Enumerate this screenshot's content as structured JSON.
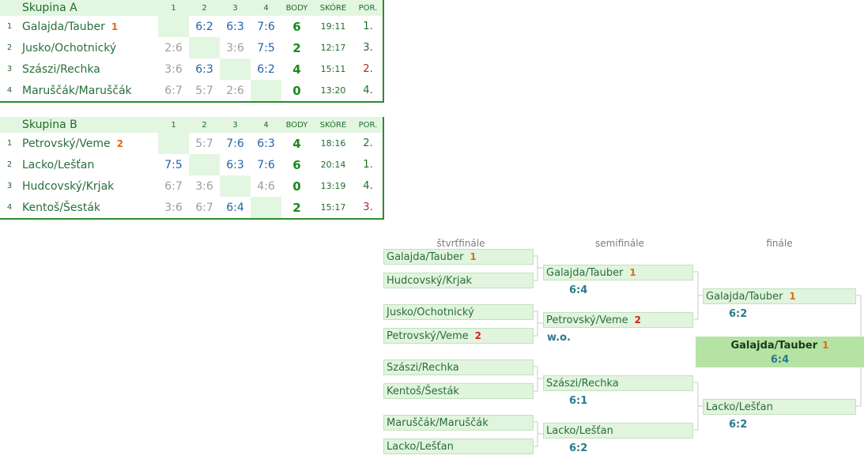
{
  "group_a": {
    "title": "Skupina A",
    "headers": [
      "1",
      "2",
      "3",
      "4",
      "BODY",
      "SKÓRE",
      "POR."
    ],
    "rows": [
      {
        "idx": "1",
        "team": "Galajda/Tauber",
        "seed": "1",
        "c1": "",
        "c2": "6:2",
        "c3": "6:3",
        "c4": "7:6",
        "pts": "6",
        "score": "19:11",
        "rank": "1."
      },
      {
        "idx": "2",
        "team": "Jusko/Ochotnický",
        "seed": "",
        "c1": "2:6",
        "c2": "",
        "c3": "3:6",
        "c4": "7:5",
        "pts": "2",
        "score": "12:17",
        "rank": "3."
      },
      {
        "idx": "3",
        "team": "Szászi/Rechka",
        "seed": "",
        "c1": "3:6",
        "c2": "6:3",
        "c3": "",
        "c4": "6:2",
        "pts": "4",
        "score": "15:11",
        "rank": "2."
      },
      {
        "idx": "4",
        "team": "Maruščák/Maruščák",
        "seed": "",
        "c1": "6:7",
        "c2": "5:7",
        "c3": "2:6",
        "c4": "",
        "pts": "0",
        "score": "13:20",
        "rank": "4."
      }
    ]
  },
  "group_b": {
    "title": "Skupina B",
    "headers": [
      "1",
      "2",
      "3",
      "4",
      "BODY",
      "SKÓRE",
      "POR."
    ],
    "rows": [
      {
        "idx": "1",
        "team": "Petrovský/Veme",
        "seed": "2",
        "c1": "",
        "c2": "5:7",
        "c3": "7:6",
        "c4": "6:3",
        "pts": "4",
        "score": "18:16",
        "rank": "2."
      },
      {
        "idx": "2",
        "team": "Lacko/Lešťan",
        "seed": "",
        "c1": "7:5",
        "c2": "",
        "c3": "6:3",
        "c4": "7:6",
        "pts": "6",
        "score": "20:14",
        "rank": "1."
      },
      {
        "idx": "3",
        "team": "Hudcovský/Krjak",
        "seed": "",
        "c1": "6:7",
        "c2": "3:6",
        "c3": "",
        "c4": "4:6",
        "pts": "0",
        "score": "13:19",
        "rank": "4."
      },
      {
        "idx": "4",
        "team": "Kentoš/Šesták",
        "seed": "",
        "c1": "3:6",
        "c2": "6:7",
        "c3": "6:4",
        "c4": "",
        "pts": "2",
        "score": "15:17",
        "rank": "3."
      }
    ]
  },
  "bracket": {
    "round_labels": {
      "qf": "štvrťfinále",
      "sf": "semifinále",
      "f": "finále"
    },
    "qf": [
      {
        "team": "Galajda/Tauber",
        "seed": "1"
      },
      {
        "team": "Hudcovský/Krjak",
        "seed": ""
      },
      {
        "team": "Jusko/Ochotnický",
        "seed": ""
      },
      {
        "team": "Petrovský/Veme",
        "seed": "2"
      },
      {
        "team": "Szászi/Rechka",
        "seed": ""
      },
      {
        "team": "Kentoš/Šesták",
        "seed": ""
      },
      {
        "team": "Maruščák/Maruščák",
        "seed": ""
      },
      {
        "team": "Lacko/Lešťan",
        "seed": ""
      }
    ],
    "sf": [
      {
        "team": "Galajda/Tauber",
        "seed": "1",
        "result": "6:4"
      },
      {
        "team": "Petrovský/Veme",
        "seed": "2",
        "result": "w.o."
      },
      {
        "team": "Szászi/Rechka",
        "seed": "",
        "result": "6:1"
      },
      {
        "team": "Lacko/Lešťan",
        "seed": "",
        "result": "6:2"
      }
    ],
    "f": [
      {
        "team": "Galajda/Tauber",
        "seed": "1",
        "result": "6:2"
      },
      {
        "team": "Lacko/Lešťan",
        "seed": "",
        "result": "6:2"
      }
    ],
    "champion": {
      "team": "Galajda/Tauber",
      "seed": "1",
      "result": "6:4"
    }
  },
  "colors": {
    "accent_green": "#2e8b2e",
    "cell_bg": "#e3f6e1",
    "slot_bg": "#e1f4de",
    "champion_bg": "#b5e3a4",
    "seed_orange": "#e26a18",
    "seed_red": "#d21f1f"
  }
}
